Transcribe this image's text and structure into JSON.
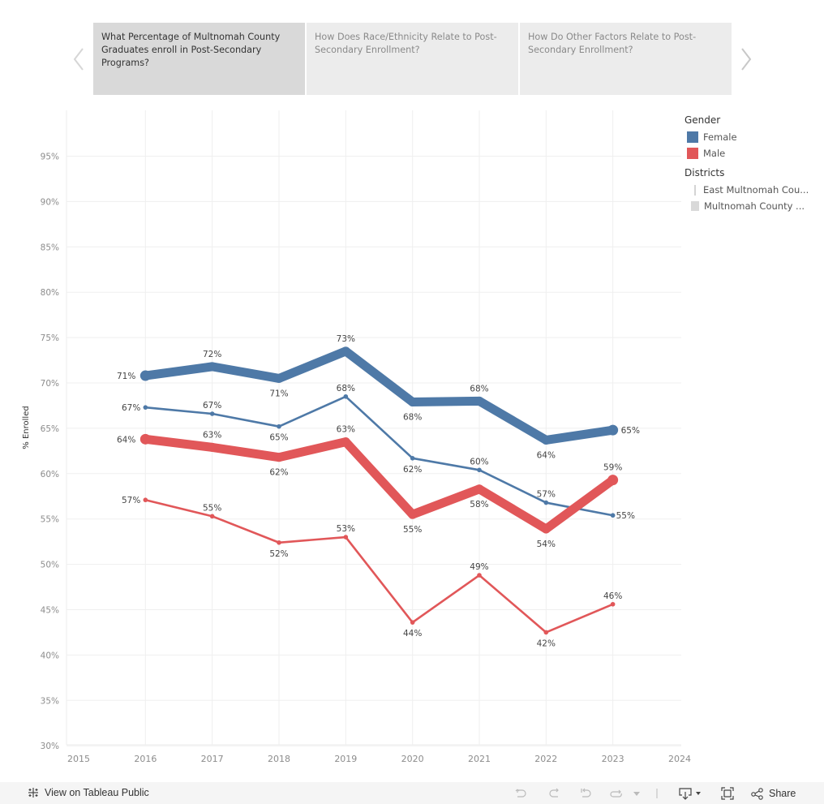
{
  "navigation": {
    "prev_icon": "chevron-left-icon",
    "next_icon": "chevron-right-icon",
    "tabs": [
      {
        "label": "What Percentage of Multnomah County Graduates enroll in Post-Secondary Programs?",
        "active": true
      },
      {
        "label": "How Does Race/Ethnicity Relate to Post-Secondary Enrollment?",
        "active": false
      },
      {
        "label": "How Do Other Factors Relate to Post-Secondary Enrollment?",
        "active": false
      }
    ]
  },
  "legend": {
    "gender_title": "Gender",
    "gender_items": [
      {
        "label": "Female",
        "color": "#4e79a7"
      },
      {
        "label": "Male",
        "color": "#e15759"
      }
    ],
    "districts_title": "Districts",
    "district_items": [
      {
        "label": "East Multnomah Cou...",
        "style": "thin line"
      },
      {
        "label": "Multnomah County ...",
        "style": "thick line"
      }
    ]
  },
  "chart_data": {
    "type": "line",
    "title": "",
    "xlabel": "",
    "ylabel": "% Enrolled",
    "x": [
      2016,
      2017,
      2018,
      2019,
      2020,
      2021,
      2022,
      2023
    ],
    "xlim": [
      2015,
      2024
    ],
    "x_ticks": [
      "2015",
      "2016",
      "2017",
      "2018",
      "2019",
      "2020",
      "2021",
      "2022",
      "2023",
      "2024"
    ],
    "ylim": [
      29.7,
      99
    ],
    "y_ticks": [
      "30%",
      "35%",
      "40%",
      "45%",
      "50%",
      "55%",
      "60%",
      "65%",
      "70%",
      "75%",
      "80%",
      "85%",
      "90%",
      "95%"
    ],
    "grid": true,
    "legend_position": "right",
    "series": [
      {
        "name": "Female - Multnomah County",
        "gender": "Female",
        "district": "Multnomah County",
        "color": "#4e79a7",
        "weight": "thick",
        "values": [
          70.8,
          71.8,
          70.5,
          73.5,
          67.9,
          68.0,
          63.7,
          64.8
        ],
        "labels": [
          "71%",
          "72%",
          "71%",
          "73%",
          "68%",
          "68%",
          "64%",
          "65%"
        ],
        "label_pos": [
          "left",
          "above",
          "below",
          "above",
          "below",
          "above",
          "below",
          "right"
        ]
      },
      {
        "name": "Female - East Multnomah County",
        "gender": "Female",
        "district": "East Multnomah County",
        "color": "#4e79a7",
        "weight": "thin",
        "values": [
          67.3,
          66.6,
          65.2,
          68.5,
          61.7,
          60.4,
          56.8,
          55.4
        ],
        "labels": [
          "67%",
          "67%",
          "65%",
          "68%",
          "62%",
          "60%",
          "57%",
          "55%"
        ],
        "label_pos": [
          "left",
          "above",
          "below",
          "above",
          "below",
          "above",
          "above",
          "right"
        ]
      },
      {
        "name": "Male - Multnomah County",
        "gender": "Male",
        "district": "Multnomah County",
        "color": "#e15759",
        "weight": "thick",
        "values": [
          63.8,
          62.9,
          61.8,
          63.5,
          55.5,
          58.3,
          53.9,
          59.3
        ],
        "labels": [
          "64%",
          "63%",
          "62%",
          "63%",
          "55%",
          "58%",
          "54%",
          "59%"
        ],
        "label_pos": [
          "left",
          "above",
          "below",
          "above",
          "below",
          "below",
          "below",
          "above"
        ]
      },
      {
        "name": "Male - East Multnomah County",
        "gender": "Male",
        "district": "East Multnomah County",
        "color": "#e15759",
        "weight": "thin",
        "values": [
          57.1,
          55.3,
          52.4,
          53.0,
          43.6,
          48.8,
          42.5,
          45.6
        ],
        "labels": [
          "57%",
          "55%",
          "52%",
          "53%",
          "44%",
          "49%",
          "42%",
          "46%"
        ],
        "label_pos": [
          "left",
          "above",
          "below",
          "above",
          "below",
          "above",
          "below",
          "above"
        ]
      }
    ]
  },
  "footer": {
    "view_on_tableau": "View on Tableau Public",
    "share": "Share",
    "tools": [
      "undo-icon",
      "redo-icon",
      "revert-icon",
      "refresh-icon",
      "pause-dropdown-icon",
      "download-icon",
      "fullscreen-icon",
      "share-icon"
    ]
  }
}
